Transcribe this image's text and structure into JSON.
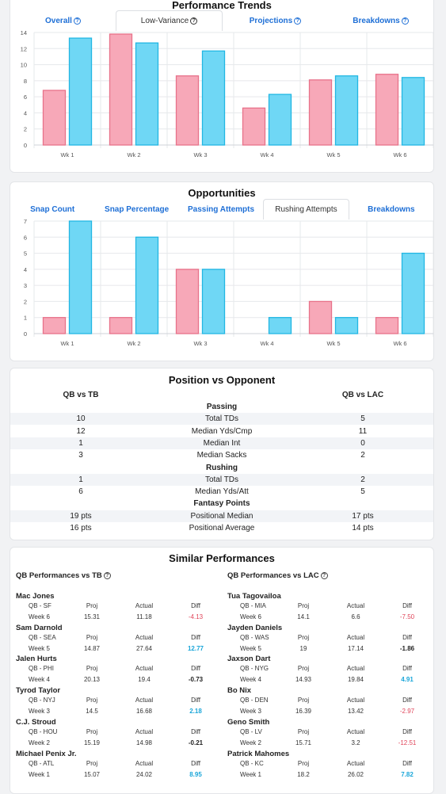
{
  "performance_trends": {
    "title": "Performance Trends",
    "tabs": [
      {
        "label": "Overall",
        "has_help": true,
        "active": false
      },
      {
        "label": "Low-Variance",
        "has_help": true,
        "active": true
      },
      {
        "label": "Projections",
        "has_help": true,
        "active": false
      },
      {
        "label": "Breakdowns",
        "has_help": true,
        "active": false
      }
    ],
    "chart_data": {
      "type": "bar",
      "categories": [
        "Wk 1",
        "Wk 2",
        "Wk 3",
        "Wk 4",
        "Wk 5",
        "Wk 6"
      ],
      "series": [
        {
          "values": [
            6.8,
            13.8,
            8.6,
            4.6,
            8.1,
            8.8
          ],
          "color": "#f7a8b8"
        },
        {
          "values": [
            13.3,
            12.7,
            11.7,
            6.3,
            8.6,
            8.4
          ],
          "color": "#6fd7f5"
        }
      ],
      "yticks": [
        0,
        2,
        4,
        6,
        8,
        10,
        12,
        14
      ],
      "ylim": [
        0,
        14
      ]
    }
  },
  "opportunities": {
    "title": "Opportunities",
    "tabs": [
      {
        "label": "Snap Count",
        "active": false
      },
      {
        "label": "Snap Percentage",
        "active": false
      },
      {
        "label": "Passing Attempts",
        "active": false
      },
      {
        "label": "Rushing Attempts",
        "active": true
      },
      {
        "label": "Breakdowns",
        "active": false
      }
    ],
    "chart_data": {
      "type": "bar",
      "categories": [
        "Wk 1",
        "Wk 2",
        "Wk 3",
        "Wk 4",
        "Wk 5",
        "Wk 6"
      ],
      "series": [
        {
          "values": [
            1,
            1,
            4,
            0,
            2,
            1
          ],
          "color": "#f7a8b8"
        },
        {
          "values": [
            7,
            6,
            4,
            1,
            1,
            5
          ],
          "color": "#6fd7f5"
        }
      ],
      "yticks": [
        0,
        1,
        2,
        3,
        4,
        5,
        6,
        7
      ],
      "ylim": [
        0,
        7
      ]
    }
  },
  "position_vs_opponent": {
    "title": "Position vs Opponent",
    "left_header": "QB vs TB",
    "right_header": "QB vs LAC",
    "sections": [
      {
        "name": "Passing",
        "rows": [
          {
            "left": "10",
            "label": "Total TDs",
            "right": "5"
          },
          {
            "left": "12",
            "label": "Median Yds/Cmp",
            "right": "11"
          },
          {
            "left": "1",
            "label": "Median Int",
            "right": "0"
          },
          {
            "left": "3",
            "label": "Median Sacks",
            "right": "2"
          }
        ]
      },
      {
        "name": "Rushing",
        "rows": [
          {
            "left": "1",
            "label": "Total TDs",
            "right": "2"
          },
          {
            "left": "6",
            "label": "Median Yds/Att",
            "right": "5"
          }
        ]
      },
      {
        "name": "Fantasy Points",
        "rows": [
          {
            "left": "19 pts",
            "label": "Positional Median",
            "right": "17 pts"
          },
          {
            "left": "16 pts",
            "label": "Positional Average",
            "right": "14 pts"
          }
        ]
      }
    ]
  },
  "similar_performances": {
    "title": "Similar Performances",
    "columns": [
      {
        "header": "QB Performances vs TB",
        "players": [
          {
            "name": "Mac Jones",
            "team": "QB - SF",
            "week": "Week 6",
            "proj_label": "Proj",
            "proj": "15.31",
            "actual_label": "Actual",
            "actual": "11.18",
            "diff_label": "Diff",
            "diff": "-4.13",
            "sign": "neg"
          },
          {
            "name": "Sam Darnold",
            "team": "QB - SEA",
            "week": "Week 5",
            "proj_label": "Proj",
            "proj": "14.87",
            "actual_label": "Actual",
            "actual": "27.64",
            "diff_label": "Diff",
            "diff": "12.77",
            "sign": "pos"
          },
          {
            "name": "Jalen Hurts",
            "team": "QB - PHI",
            "week": "Week 4",
            "proj_label": "Proj",
            "proj": "20.13",
            "actual_label": "Actual",
            "actual": "19.4",
            "diff_label": "Diff",
            "diff": "-0.73",
            "sign": "neu"
          },
          {
            "name": "Tyrod Taylor",
            "team": "QB - NYJ",
            "week": "Week 3",
            "proj_label": "Proj",
            "proj": "14.5",
            "actual_label": "Actual",
            "actual": "16.68",
            "diff_label": "Diff",
            "diff": "2.18",
            "sign": "pos"
          },
          {
            "name": "C.J. Stroud",
            "team": "QB - HOU",
            "week": "Week 2",
            "proj_label": "Proj",
            "proj": "15.19",
            "actual_label": "Actual",
            "actual": "14.98",
            "diff_label": "Diff",
            "diff": "-0.21",
            "sign": "neu"
          },
          {
            "name": "Michael Penix Jr.",
            "team": "QB - ATL",
            "week": "Week 1",
            "proj_label": "Proj",
            "proj": "15.07",
            "actual_label": "Actual",
            "actual": "24.02",
            "diff_label": "Diff",
            "diff": "8.95",
            "sign": "pos"
          }
        ]
      },
      {
        "header": "QB Performances vs LAC",
        "players": [
          {
            "name": "Tua Tagovailoa",
            "team": "QB - MIA",
            "week": "Week 6",
            "proj_label": "Proj",
            "proj": "14.1",
            "actual_label": "Actual",
            "actual": "6.6",
            "diff_label": "Diff",
            "diff": "-7.50",
            "sign": "neg"
          },
          {
            "name": "Jayden Daniels",
            "team": "QB - WAS",
            "week": "Week 5",
            "proj_label": "Proj",
            "proj": "19",
            "actual_label": "Actual",
            "actual": "17.14",
            "diff_label": "Diff",
            "diff": "-1.86",
            "sign": "neu"
          },
          {
            "name": "Jaxson Dart",
            "team": "QB - NYG",
            "week": "Week 4",
            "proj_label": "Proj",
            "proj": "14.93",
            "actual_label": "Actual",
            "actual": "19.84",
            "diff_label": "Diff",
            "diff": "4.91",
            "sign": "pos"
          },
          {
            "name": "Bo Nix",
            "team": "QB - DEN",
            "week": "Week 3",
            "proj_label": "Proj",
            "proj": "16.39",
            "actual_label": "Actual",
            "actual": "13.42",
            "diff_label": "Diff",
            "diff": "-2.97",
            "sign": "neg"
          },
          {
            "name": "Geno Smith",
            "team": "QB - LV",
            "week": "Week 2",
            "proj_label": "Proj",
            "proj": "15.71",
            "actual_label": "Actual",
            "actual": "3.2",
            "diff_label": "Diff",
            "diff": "-12.51",
            "sign": "neg"
          },
          {
            "name": "Patrick Mahomes",
            "team": "QB - KC",
            "week": "Week 1",
            "proj_label": "Proj",
            "proj": "18.2",
            "actual_label": "Actual",
            "actual": "26.02",
            "diff_label": "Diff",
            "diff": "7.82",
            "sign": "pos"
          }
        ]
      }
    ]
  }
}
